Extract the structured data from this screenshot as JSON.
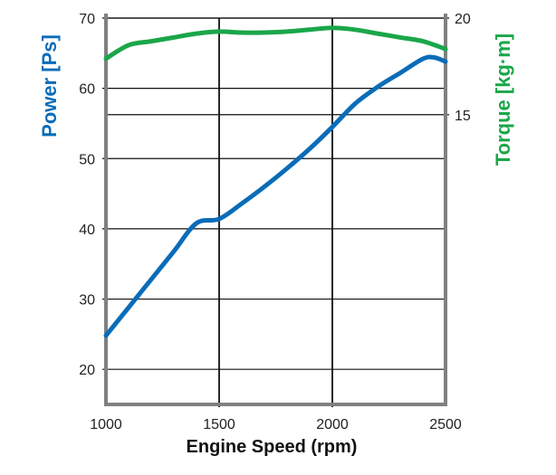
{
  "chart_data": {
    "type": "line",
    "xlabel": "Engine Speed (rpm)",
    "ylabel_left": "Power [Ps]",
    "ylabel_right": "Torque [kg·m]",
    "xlim": [
      1000,
      2500
    ],
    "ylim_left": [
      15,
      70
    ],
    "ylim_right": [
      0,
      20
    ],
    "x_ticks": [
      "1000",
      "1500",
      "2000",
      "2500"
    ],
    "y_left_ticks": [
      "20",
      "30",
      "40",
      "50",
      "60",
      "70"
    ],
    "y_right_ticks": [
      "15",
      "20"
    ],
    "grid": true,
    "colors": {
      "power": "#0a6cb8",
      "torque": "#1aa64a",
      "axis": "#808080",
      "grid": "#111111"
    },
    "series": [
      {
        "name": "Power [Ps]",
        "axis": "left",
        "x": [
          1000,
          1100,
          1200,
          1300,
          1400,
          1500,
          1600,
          1700,
          1800,
          1900,
          2000,
          2100,
          2200,
          2300,
          2400,
          2450,
          2500
        ],
        "values": [
          24.8,
          28.8,
          32.8,
          36.8,
          40.8,
          41.4,
          43.6,
          46.0,
          48.6,
          51.4,
          54.5,
          57.8,
          60.2,
          62.2,
          64.2,
          64.4,
          63.8
        ]
      },
      {
        "name": "Torque [kg·m]",
        "axis": "right",
        "x": [
          1000,
          1100,
          1200,
          1300,
          1400,
          1500,
          1600,
          1700,
          1800,
          1900,
          2000,
          2100,
          2200,
          2300,
          2400,
          2500
        ],
        "values": [
          17.9,
          18.6,
          18.8,
          19.0,
          19.2,
          19.3,
          19.25,
          19.25,
          19.3,
          19.4,
          19.5,
          19.4,
          19.2,
          19.0,
          18.8,
          18.4
        ]
      }
    ]
  }
}
